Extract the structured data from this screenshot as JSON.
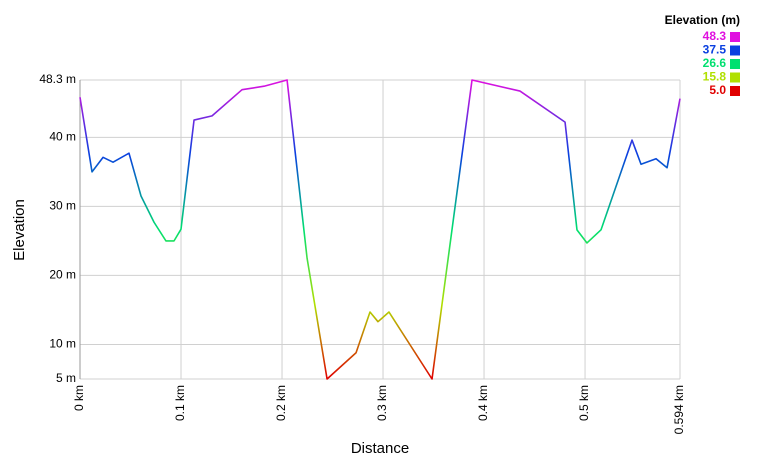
{
  "chart_data": {
    "type": "line",
    "x_label": "Distance",
    "y_label": "Elevation",
    "x": [
      0,
      0.0119,
      0.0228,
      0.0327,
      0.0485,
      0.0604,
      0.0733,
      0.0851,
      0.0931,
      0.1,
      0.1129,
      0.1307,
      0.1604,
      0.1822,
      0.205,
      0.2248,
      0.2446,
      0.2733,
      0.2871,
      0.295,
      0.3059,
      0.3485,
      0.3881,
      0.4356,
      0.4802,
      0.492,
      0.5019,
      0.5158,
      0.5465,
      0.5554,
      0.5703,
      0.5812,
      0.594
    ],
    "values": [
      45.8,
      35.0,
      37.1,
      36.4,
      37.7,
      31.5,
      27.7,
      25.0,
      25.0,
      26.7,
      42.5,
      43.1,
      46.9,
      47.4,
      48.3,
      22.5,
      5.0,
      8.8,
      14.7,
      13.3,
      14.7,
      5.0,
      48.3,
      46.7,
      42.2,
      26.6,
      24.7,
      26.6,
      39.6,
      36.1,
      36.9,
      35.6,
      45.6
    ],
    "xlim": [
      0,
      0.594
    ],
    "xticks": [
      {
        "value": 0,
        "label": "0 km"
      },
      {
        "value": 0.1,
        "label": "0.1 km"
      },
      {
        "value": 0.2,
        "label": "0.2 km"
      },
      {
        "value": 0.3,
        "label": "0.3 km"
      },
      {
        "value": 0.4,
        "label": "0.4 km"
      },
      {
        "value": 0.5,
        "label": "0.5 km"
      },
      {
        "value": 0.594,
        "label": "0.594 km"
      }
    ],
    "ylim": [
      5,
      48.3
    ],
    "yticks": [
      {
        "value": 5,
        "label": "5 m"
      },
      {
        "value": 10,
        "label": "10 m"
      },
      {
        "value": 20,
        "label": "20 m"
      },
      {
        "value": 30,
        "label": "30 m"
      },
      {
        "value": 40,
        "label": "40 m"
      },
      {
        "value": 48.3,
        "label": "48.3 m"
      }
    ],
    "grid": true,
    "color_scale": {
      "title": "Elevation (m)",
      "stops": [
        {
          "value": 48.3,
          "color": "#e010e0"
        },
        {
          "value": 37.5,
          "color": "#0a40e0"
        },
        {
          "value": 26.6,
          "color": "#00e070"
        },
        {
          "value": 15.8,
          "color": "#b0e000"
        },
        {
          "value": 5.0,
          "label": "5.0",
          "color": "#e00000"
        }
      ]
    }
  }
}
